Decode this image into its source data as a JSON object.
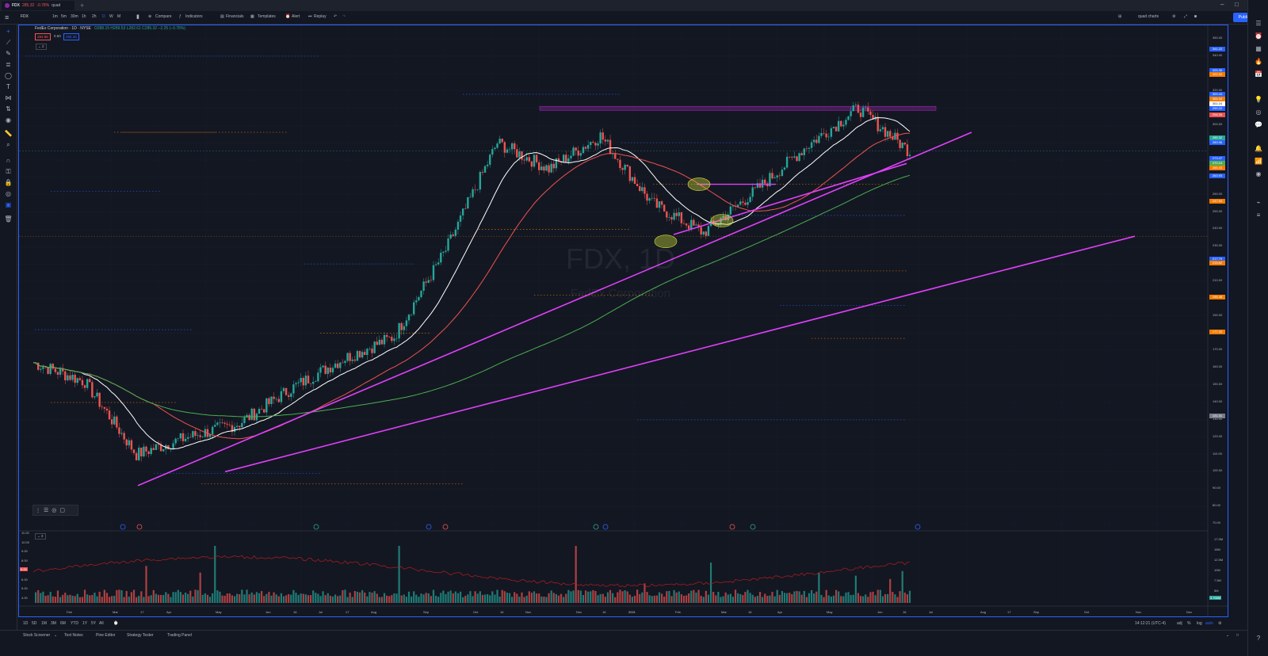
{
  "tab": {
    "symbol": "FDX",
    "price": "285.32",
    "change": "-0.78%",
    "chart_name": "quad"
  },
  "toolbar": {
    "symbol": "FDX",
    "intervals": [
      "1m",
      "5m",
      "30m",
      "1h",
      "2h",
      "D",
      "W",
      "M"
    ],
    "active_interval": "D",
    "compare": "Compare",
    "indicators": "Indicators",
    "financials": "Financials",
    "templates": "Templates",
    "alert": "Alert",
    "replay": "Replay",
    "layout_name": "quad charts",
    "publish": "Publish"
  },
  "legend": {
    "title": "FedEx Corporation · 1D · NYSE",
    "ohlc": "O288.15 H289.53 L282.61 C285.32 −2.25 (−0.78%)",
    "bid": "284.86",
    "spread": "0.50",
    "ask": "285.36",
    "collapse": "2"
  },
  "watermark": {
    "symbol": "FDX, 1D",
    "name": "FedEx Corporation"
  },
  "volume_legend": "2",
  "price_axis": {
    "ticks": [
      "350.00",
      "340.00",
      "330.00",
      "320.00",
      "310.00",
      "300.00",
      "290.00",
      "280.00",
      "270.00",
      "260.00",
      "250.00",
      "240.00",
      "230.00",
      "220.00",
      "210.00",
      "200.00",
      "190.00",
      "180.00",
      "170.00",
      "160.00",
      "150.00",
      "140.00",
      "130.00",
      "120.00",
      "110.00",
      "100.00",
      "90.00",
      "80.00",
      "70.00"
    ],
    "labels": [
      {
        "text": "341.22",
        "color": "#2962ff"
      },
      {
        "text": "325.36",
        "color": "#2962ff"
      },
      {
        "text": "322.32",
        "color": "#f57c00"
      },
      {
        "text": "309.44",
        "color": "#2962ff"
      },
      {
        "text": "305.34",
        "color": "#f57c00"
      },
      {
        "text": "302.24",
        "color": "#ffffff"
      },
      {
        "text": "299.22",
        "color": "#2962ff"
      },
      {
        "text": "294.26",
        "color": "#ef5350"
      },
      {
        "text": "285.32",
        "color": "#26a69a"
      },
      {
        "text": "283.96",
        "color": "#2962ff"
      },
      {
        "text": "273.47",
        "color": "#2962ff"
      },
      {
        "text": "270.24",
        "color": "#4caf50"
      },
      {
        "text": "266.43",
        "color": "#f57c00"
      },
      {
        "text": "263.93",
        "color": "#2962ff"
      },
      {
        "text": "247.94",
        "color": "#f57c00"
      },
      {
        "text": "217.79",
        "color": "#2962ff"
      },
      {
        "text": "215.62",
        "color": "#f57c00"
      },
      {
        "text": "195.48",
        "color": "#f57c00"
      },
      {
        "text": "177.33",
        "color": "#f57c00"
      },
      {
        "text": "131.31",
        "color": "#787b86"
      }
    ]
  },
  "volume_axis": {
    "ticks": [
      "11.00",
      "10.00",
      "9.00",
      "8.00",
      "7.00",
      "6.00",
      "5.00",
      "4.00"
    ],
    "marker": "6.00",
    "right_ticks": [
      "17.5M",
      "15M",
      "12.5M",
      "10M",
      "7.5M",
      "5M"
    ],
    "right_marker": "3.766M"
  },
  "time_axis": [
    "Feb",
    "Mar",
    "17",
    "Apr",
    "May",
    "Jun",
    "16",
    "Jul",
    "17",
    "Aug",
    "Sep",
    "Oct",
    "16",
    "Nov",
    "Dec",
    "16",
    "2021",
    "Feb",
    "Mar",
    "16",
    "Apr",
    "May",
    "Jun",
    "16",
    "Jul",
    "Aug",
    "17",
    "Sep",
    "Oct",
    "Nov",
    "Dec"
  ],
  "range_buttons": [
    "1D",
    "5D",
    "1M",
    "3M",
    "6M",
    "YTD",
    "1Y",
    "5Y",
    "All"
  ],
  "range_status": {
    "time": "14:12:21 (UTC-4)",
    "adj": "adj",
    "pct": "%",
    "log": "log",
    "auto": "auto"
  },
  "bottom_tabs": [
    "Stock Screener",
    "Text Notes",
    "Pine Editor",
    "Strategy Tester",
    "Trading Panel"
  ],
  "chart_data": {
    "type": "candlestick",
    "symbol": "FDX",
    "interval": "1D",
    "ylim": [
      70,
      350
    ],
    "moving_averages": [
      {
        "color": "#ffffff",
        "last": 302.24
      },
      {
        "color": "#ef5350",
        "last": 294.26
      },
      {
        "color": "#4caf50",
        "last": 270.24
      }
    ],
    "close_path_months": [
      "2020-01",
      "2020-02",
      "2020-03",
      "2020-04",
      "2020-05",
      "2020-06",
      "2020-07",
      "2020-08",
      "2020-09",
      "2020-10",
      "2020-11",
      "2020-12",
      "2021-01",
      "2021-02",
      "2021-03",
      "2021-04",
      "2021-05",
      "2021-06"
    ],
    "close_path_values": [
      163,
      152,
      110,
      120,
      128,
      148,
      165,
      178,
      228,
      290,
      275,
      294,
      255,
      238,
      262,
      288,
      310,
      285
    ]
  }
}
